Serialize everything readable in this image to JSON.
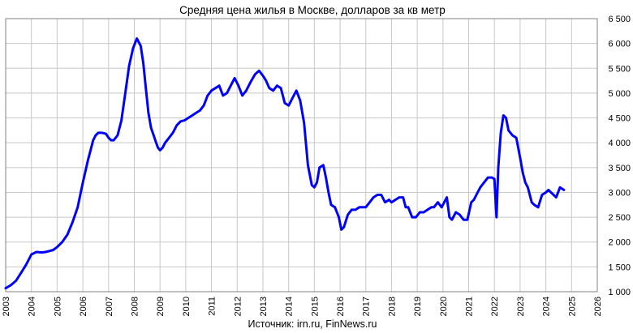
{
  "chart_data": {
    "type": "line",
    "title": "Средняя цена жилья в Москве, долларов за кв метр",
    "source": "Источник: irn.ru, FinNews.ru",
    "xlabel": "",
    "ylabel": "",
    "xlim": [
      2003,
      2026
    ],
    "ylim": [
      1000,
      6500
    ],
    "x_ticks": [
      "2003",
      "2004",
      "2005",
      "2006",
      "2007",
      "2008",
      "2009",
      "2010",
      "2011",
      "2012",
      "2013",
      "2014",
      "2015",
      "2016",
      "2017",
      "2018",
      "2019",
      "2020",
      "2021",
      "2022",
      "2023",
      "2024",
      "2025",
      "2026"
    ],
    "y_ticks": [
      "1 000",
      "1 500",
      "2 000",
      "2 500",
      "3 000",
      "3 500",
      "4 000",
      "4 500",
      "5 000",
      "5 500",
      "6 000",
      "6 500"
    ],
    "y_tick_values": [
      1000,
      1500,
      2000,
      2500,
      3000,
      3500,
      4000,
      4500,
      5000,
      5500,
      6000,
      6500
    ],
    "grid": true,
    "y_axis_side": "right",
    "legend": "none",
    "colors": {
      "series": "#0000ff",
      "grid": "#c8c8c8",
      "frame": "#808080"
    },
    "series": [
      {
        "x": [
          2003.0,
          2003.2,
          2003.4,
          2003.6,
          2003.8,
          2004.0,
          2004.2,
          2004.4,
          2004.55,
          2004.7,
          2004.85,
          2005.0,
          2005.2,
          2005.4,
          2005.6,
          2005.8,
          2006.0,
          2006.2,
          2006.4,
          2006.5,
          2006.6,
          2006.75,
          2006.9,
          2007.0,
          2007.1,
          2007.2,
          2007.35,
          2007.5,
          2007.65,
          2007.8,
          2007.95,
          2008.1,
          2008.25,
          2008.35,
          2008.45,
          2008.55,
          2008.65,
          2008.75,
          2008.85,
          2008.92,
          2009.0,
          2009.1,
          2009.2,
          2009.35,
          2009.5,
          2009.65,
          2009.8,
          2009.95,
          2010.1,
          2010.25,
          2010.4,
          2010.55,
          2010.7,
          2010.85,
          2011.0,
          2011.15,
          2011.3,
          2011.45,
          2011.6,
          2011.75,
          2011.9,
          2012.05,
          2012.2,
          2012.35,
          2012.45,
          2012.55,
          2012.7,
          2012.85,
          2013.0,
          2013.12,
          2013.25,
          2013.4,
          2013.55,
          2013.7,
          2013.85,
          2014.0,
          2014.15,
          2014.3,
          2014.45,
          2014.6,
          2014.75,
          2014.9,
          2015.0,
          2015.1,
          2015.2,
          2015.35,
          2015.45,
          2015.55,
          2015.65,
          2015.8,
          2015.95,
          2016.05,
          2016.15,
          2016.3,
          2016.45,
          2016.6,
          2016.75,
          2016.9,
          2017.0,
          2017.15,
          2017.3,
          2017.45,
          2017.6,
          2017.75,
          2017.9,
          2018.0,
          2018.15,
          2018.3,
          2018.45,
          2018.55,
          2018.65,
          2018.8,
          2018.95,
          2019.1,
          2019.25,
          2019.4,
          2019.55,
          2019.65,
          2019.8,
          2019.95,
          2020.05,
          2020.15,
          2020.25,
          2020.35,
          2020.5,
          2020.65,
          2020.8,
          2020.95,
          2021.1,
          2021.2,
          2021.3,
          2021.45,
          2021.6,
          2021.75,
          2021.9,
          2022.0,
          2022.08,
          2022.15,
          2022.25,
          2022.35,
          2022.45,
          2022.55,
          2022.7,
          2022.85,
          2023.0,
          2023.1,
          2023.2,
          2023.3,
          2023.45,
          2023.55,
          2023.7,
          2023.85,
          2024.0,
          2024.1,
          2024.2,
          2024.3,
          2024.4,
          2024.55,
          2024.7
        ],
        "values": [
          1070,
          1130,
          1220,
          1380,
          1550,
          1750,
          1800,
          1790,
          1800,
          1820,
          1840,
          1900,
          2000,
          2150,
          2400,
          2700,
          3200,
          3650,
          4050,
          4150,
          4200,
          4200,
          4180,
          4100,
          4050,
          4050,
          4150,
          4450,
          5000,
          5550,
          5900,
          6100,
          5950,
          5600,
          5100,
          4600,
          4300,
          4150,
          4000,
          3900,
          3850,
          3900,
          4000,
          4100,
          4200,
          4350,
          4430,
          4450,
          4500,
          4550,
          4600,
          4650,
          4750,
          4950,
          5050,
          5100,
          5150,
          4950,
          5000,
          5150,
          5300,
          5150,
          4950,
          5050,
          5150,
          5250,
          5380,
          5450,
          5350,
          5250,
          5100,
          5050,
          5150,
          5100,
          4800,
          4750,
          4900,
          5050,
          4850,
          4400,
          3550,
          3150,
          3100,
          3200,
          3500,
          3550,
          3300,
          3000,
          2750,
          2700,
          2500,
          2250,
          2300,
          2550,
          2650,
          2650,
          2700,
          2700,
          2700,
          2800,
          2900,
          2950,
          2950,
          2800,
          2850,
          2800,
          2850,
          2900,
          2900,
          2700,
          2700,
          2500,
          2500,
          2600,
          2600,
          2650,
          2700,
          2700,
          2800,
          2700,
          2800,
          2900,
          2500,
          2450,
          2600,
          2550,
          2450,
          2450,
          2800,
          2850,
          2950,
          3100,
          3200,
          3300,
          3300,
          3270,
          2500,
          3500,
          4200,
          4550,
          4500,
          4250,
          4150,
          4100,
          3700,
          3400,
          3200,
          3100,
          2800,
          2750,
          2700,
          2950,
          3000,
          3050,
          3000,
          2950,
          2900,
          3100,
          3050
        ]
      }
    ]
  }
}
